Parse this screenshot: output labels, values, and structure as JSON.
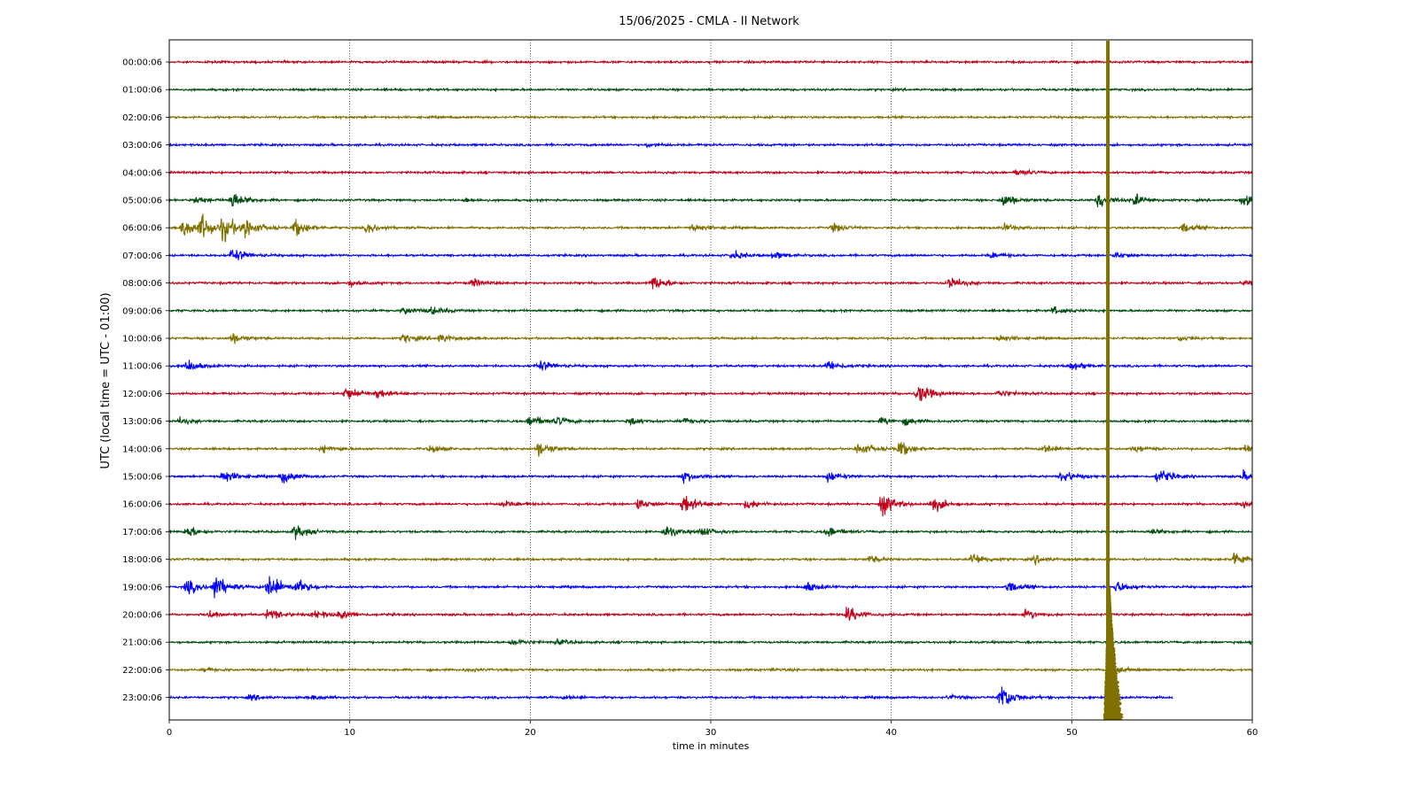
{
  "chart_data": {
    "type": "line",
    "title": "15/06/2025 - CMLA - II Network",
    "xlabel": "time in minutes",
    "ylabel": "UTC (local time = UTC - 01:00)",
    "xlim": [
      0,
      60
    ],
    "x_ticks": [
      "0",
      "10",
      "20",
      "30",
      "40",
      "50",
      "60"
    ],
    "grid": "vertical dotted lines at 10-minute intervals",
    "series_colors": [
      "#c0001a",
      "#004d10",
      "#807000",
      "#0000ff"
    ],
    "series": [
      {
        "name": "00:00:06",
        "color": "#c0001a",
        "events": []
      },
      {
        "name": "01:00:06",
        "color": "#004d10",
        "events": []
      },
      {
        "name": "02:00:06",
        "color": "#807000",
        "events": []
      },
      {
        "name": "03:00:06",
        "color": "#0000ff",
        "events": [
          [
            26.5,
            0.3
          ]
        ]
      },
      {
        "name": "04:00:06",
        "color": "#c0001a",
        "events": [
          [
            47.0,
            0.5
          ]
        ]
      },
      {
        "name": "05:00:06",
        "color": "#004d10",
        "events": [
          [
            1.5,
            0.6
          ],
          [
            3.5,
            1.3
          ],
          [
            16.5,
            0.3
          ],
          [
            46.2,
            1.1
          ],
          [
            51.5,
            1.3
          ],
          [
            53.5,
            0.9
          ],
          [
            59.5,
            0.9
          ]
        ]
      },
      {
        "name": "06:00:06",
        "color": "#807000",
        "events": [
          [
            0.8,
            1.6
          ],
          [
            1.8,
            1.9
          ],
          [
            3.0,
            1.9
          ],
          [
            4.2,
            1.6
          ],
          [
            7.0,
            1.3
          ],
          [
            11.0,
            0.8
          ],
          [
            29.0,
            0.6
          ],
          [
            36.8,
            0.7
          ],
          [
            46.3,
            0.6
          ],
          [
            56.2,
            0.8
          ]
        ]
      },
      {
        "name": "07:00:06",
        "color": "#0000ff",
        "events": [
          [
            3.5,
            1.2
          ],
          [
            31.2,
            0.7
          ],
          [
            33.5,
            0.6
          ],
          [
            45.5,
            0.5
          ],
          [
            52.5,
            0.5
          ]
        ]
      },
      {
        "name": "08:00:06",
        "color": "#c0001a",
        "events": [
          [
            10.0,
            0.5
          ],
          [
            16.8,
            0.6
          ],
          [
            26.8,
            1.3
          ],
          [
            43.2,
            1.1
          ],
          [
            59.5,
            0.4
          ]
        ]
      },
      {
        "name": "09:00:06",
        "color": "#004d10",
        "events": [
          [
            13.0,
            0.6
          ],
          [
            14.5,
            0.6
          ],
          [
            49.0,
            0.6
          ]
        ]
      },
      {
        "name": "10:00:06",
        "color": "#807000",
        "events": [
          [
            3.5,
            0.8
          ],
          [
            13.0,
            0.8
          ],
          [
            15.0,
            0.7
          ],
          [
            46.0,
            0.5
          ],
          [
            56.0,
            0.4
          ]
        ]
      },
      {
        "name": "11:00:06",
        "color": "#0000ff",
        "events": [
          [
            1.0,
            1.0
          ],
          [
            20.5,
            0.9
          ],
          [
            36.5,
            0.8
          ],
          [
            50.0,
            0.7
          ]
        ]
      },
      {
        "name": "12:00:06",
        "color": "#c0001a",
        "events": [
          [
            9.8,
            1.1
          ],
          [
            11.5,
            0.7
          ],
          [
            41.5,
            1.6
          ],
          [
            46.0,
            0.6
          ]
        ]
      },
      {
        "name": "13:00:06",
        "color": "#004d10",
        "events": [
          [
            0.6,
            0.5
          ],
          [
            20.0,
            1.1
          ],
          [
            21.5,
            0.6
          ],
          [
            25.5,
            0.6
          ],
          [
            28.5,
            0.5
          ],
          [
            39.5,
            0.5
          ],
          [
            40.8,
            0.5
          ]
        ]
      },
      {
        "name": "14:00:06",
        "color": "#807000",
        "events": [
          [
            8.5,
            0.6
          ],
          [
            14.5,
            0.6
          ],
          [
            20.5,
            1.2
          ],
          [
            38.2,
            1.2
          ],
          [
            40.5,
            1.2
          ],
          [
            48.5,
            0.8
          ],
          [
            53.5,
            0.6
          ],
          [
            59.5,
            0.8
          ]
        ]
      },
      {
        "name": "15:00:06",
        "color": "#0000ff",
        "events": [
          [
            3.0,
            1.1
          ],
          [
            6.3,
            1.1
          ],
          [
            28.5,
            0.9
          ],
          [
            36.5,
            0.9
          ],
          [
            49.5,
            1.1
          ],
          [
            54.8,
            1.3
          ],
          [
            59.5,
            0.7
          ]
        ]
      },
      {
        "name": "16:00:06",
        "color": "#c0001a",
        "events": [
          [
            18.5,
            0.6
          ],
          [
            26.0,
            0.9
          ],
          [
            28.5,
            1.7
          ],
          [
            32.0,
            0.8
          ],
          [
            39.5,
            1.8
          ],
          [
            42.3,
            1.2
          ],
          [
            59.5,
            0.5
          ]
        ]
      },
      {
        "name": "17:00:06",
        "color": "#004d10",
        "events": [
          [
            1.0,
            0.9
          ],
          [
            7.0,
            1.2
          ],
          [
            27.5,
            1.0
          ],
          [
            29.5,
            0.7
          ],
          [
            36.5,
            0.9
          ],
          [
            54.5,
            0.4
          ]
        ]
      },
      {
        "name": "18:00:06",
        "color": "#807000",
        "events": [
          [
            38.8,
            0.5
          ],
          [
            44.5,
            1.1
          ],
          [
            48.0,
            0.6
          ],
          [
            59.0,
            1.3
          ]
        ]
      },
      {
        "name": "19:00:06",
        "color": "#0000ff",
        "events": [
          [
            1.0,
            1.2
          ],
          [
            2.5,
            2.0
          ],
          [
            5.5,
            2.3
          ],
          [
            7.0,
            1.1
          ],
          [
            35.3,
            0.8
          ],
          [
            46.5,
            0.9
          ],
          [
            52.5,
            0.9
          ]
        ]
      },
      {
        "name": "20:00:06",
        "color": "#c0001a",
        "events": [
          [
            2.2,
            0.7
          ],
          [
            5.5,
            1.0
          ],
          [
            8.0,
            0.7
          ],
          [
            9.5,
            0.6
          ],
          [
            37.6,
            1.3
          ],
          [
            47.5,
            0.8
          ]
        ]
      },
      {
        "name": "21:00:06",
        "color": "#004d10",
        "events": [
          [
            19.0,
            0.6
          ],
          [
            21.5,
            0.4
          ],
          [
            60.0,
            0.3
          ]
        ]
      },
      {
        "name": "22:00:06",
        "color": "#807000",
        "events": [
          [
            2.0,
            0.3
          ],
          [
            16.5,
            0.2
          ],
          [
            33.5,
            0.2
          ]
        ]
      },
      {
        "name": "23:00:06",
        "color": "#0000ff",
        "events": [
          [
            4.5,
            0.4
          ],
          [
            8.0,
            0.3
          ],
          [
            22.0,
            0.3
          ],
          [
            43.2,
            0.3
          ],
          [
            46.1,
            2.3
          ]
        ],
        "end_minute": 55.6
      }
    ],
    "large_event": {
      "minute": 52.0,
      "color": "#807000",
      "description_hours": "spans full plot height, decaying coda until ~21:00-22:00 rows"
    }
  }
}
